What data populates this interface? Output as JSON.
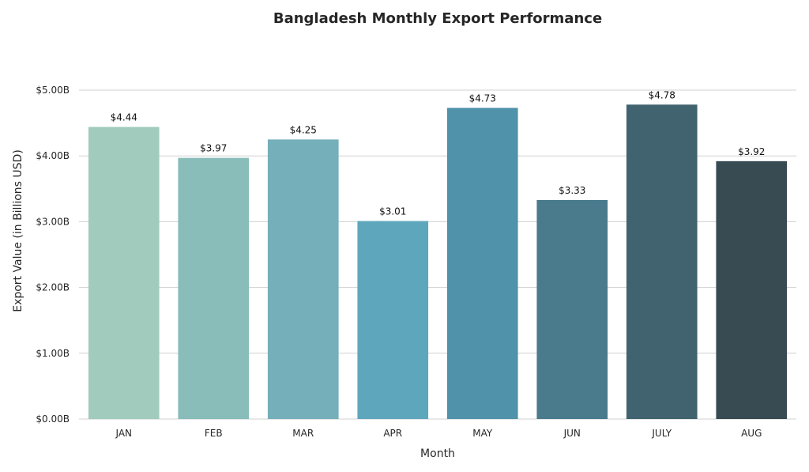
{
  "chart_data": {
    "type": "bar",
    "title": "Bangladesh Monthly Export Performance",
    "xlabel": "Month",
    "ylabel": "Export Value (in Billions USD)",
    "categories": [
      "JAN",
      "FEB",
      "MAR",
      "APR",
      "MAY",
      "JUN",
      "JULY",
      "AUG"
    ],
    "values": [
      4.44,
      3.97,
      4.25,
      3.01,
      4.73,
      3.33,
      4.78,
      3.92
    ],
    "data_labels": [
      "$4.44",
      "$3.97",
      "$4.25",
      "$3.01",
      "$4.73",
      "$3.33",
      "$4.78",
      "$3.92"
    ],
    "yticks": [
      0,
      1,
      2,
      3,
      4,
      5
    ],
    "ytick_labels": [
      "$0.00B",
      "$1.00B",
      "$2.00B",
      "$3.00B",
      "$4.00B",
      "$5.00B"
    ],
    "ylim": [
      0,
      5.0
    ],
    "grid": true,
    "colors": [
      "#a1cbbc",
      "#88bdb9",
      "#74afba",
      "#5ea6bc",
      "#4f92aa",
      "#497b8d",
      "#40636f",
      "#384b53"
    ]
  }
}
